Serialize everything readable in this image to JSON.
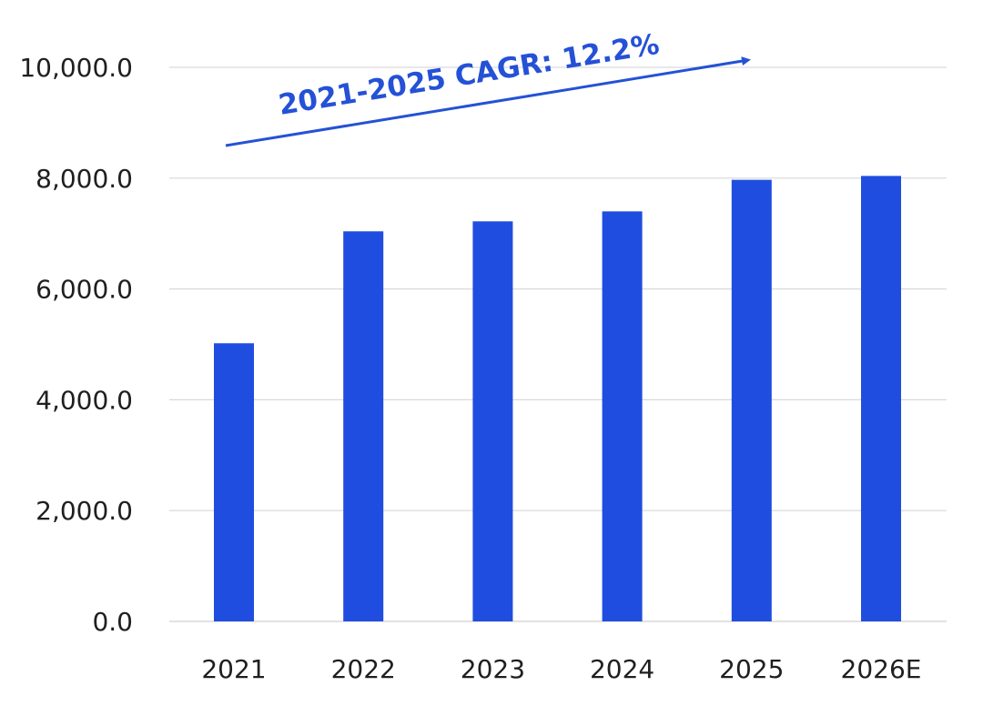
{
  "chart_data": {
    "type": "bar",
    "categories": [
      "2021",
      "2022",
      "2023",
      "2024",
      "2025",
      "2026E"
    ],
    "values": [
      5020,
      7040,
      7220,
      7400,
      7970,
      8040
    ],
    "ylim": [
      0,
      10000
    ],
    "yticks": [
      0,
      2000,
      4000,
      6000,
      8000,
      10000
    ],
    "ytick_labels": [
      "0.0",
      "2,000.0",
      "4,000.0",
      "6,000.0",
      "8,000.0",
      "10,000.0"
    ],
    "grid": true,
    "legend": "none",
    "bar_color": "#1f4de0",
    "grid_color": "#d9d9d9",
    "annotation": {
      "text": "2021-2025 CAGR: 12.2%",
      "color": "#2451d6",
      "arrow": "trend-up"
    }
  }
}
